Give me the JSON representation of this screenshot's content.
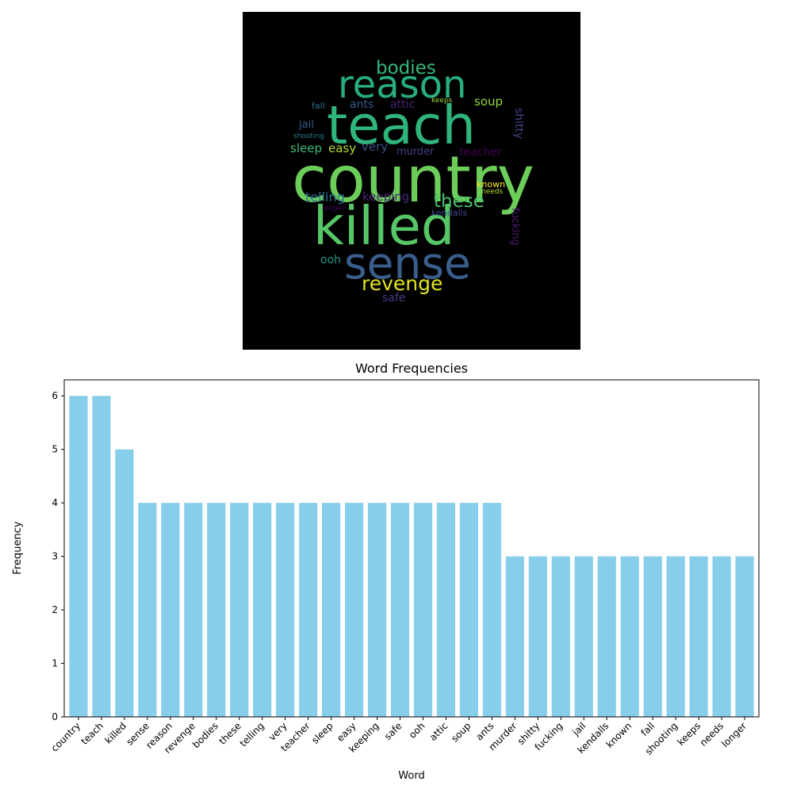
{
  "wordcloud": {
    "words": [
      {
        "text": "country",
        "color": "#6ccd5a"
      },
      {
        "text": "teach",
        "color": "#2fb47c"
      },
      {
        "text": "killed",
        "color": "#56c667"
      },
      {
        "text": "sense",
        "color": "#3a5e8c"
      },
      {
        "text": "reason",
        "color": "#27ad81"
      },
      {
        "text": "revenge",
        "color": "#e2e418"
      },
      {
        "text": "bodies",
        "color": "#35b779"
      },
      {
        "text": "these",
        "color": "#4ac16d"
      },
      {
        "text": "telling",
        "color": "#2c728e"
      },
      {
        "text": "very",
        "color": "#3b528b"
      },
      {
        "text": "teacher",
        "color": "#440154"
      },
      {
        "text": "sleep",
        "color": "#3dbc74"
      },
      {
        "text": "easy",
        "color": "#addc30"
      },
      {
        "text": "keeping",
        "color": "#482878"
      },
      {
        "text": "safe",
        "color": "#433e85"
      },
      {
        "text": "ooh",
        "color": "#1f958b"
      },
      {
        "text": "attic",
        "color": "#482173"
      },
      {
        "text": "soup",
        "color": "#90d743"
      },
      {
        "text": "ants",
        "color": "#38598c"
      },
      {
        "text": "murder",
        "color": "#414487"
      },
      {
        "text": "shitty",
        "color": "#414487"
      },
      {
        "text": "fucking",
        "color": "#481a6c"
      },
      {
        "text": "jail",
        "color": "#355f8d"
      },
      {
        "text": "kendalls",
        "color": "#3e4989"
      },
      {
        "text": "known",
        "color": "#fde725"
      },
      {
        "text": "fall",
        "color": "#2d708e"
      },
      {
        "text": "shooting",
        "color": "#2a788e"
      },
      {
        "text": "keeps",
        "color": "#9bd93c"
      },
      {
        "text": "needs",
        "color": "#b5de2b"
      },
      {
        "text": "longer",
        "color": "#46085c"
      }
    ]
  },
  "chart_data": {
    "type": "bar",
    "title": "Word Frequencies",
    "xlabel": "Word",
    "ylabel": "Frequency",
    "ylim": [
      0,
      6.3
    ],
    "yticks": [
      0,
      1,
      2,
      3,
      4,
      5,
      6
    ],
    "categories": [
      "country",
      "teach",
      "killed",
      "sense",
      "reason",
      "revenge",
      "bodies",
      "these",
      "telling",
      "very",
      "teacher",
      "sleep",
      "easy",
      "keeping",
      "safe",
      "ooh",
      "attic",
      "soup",
      "ants",
      "murder",
      "shitty",
      "fucking",
      "jail",
      "kendalls",
      "known",
      "fall",
      "shooting",
      "keeps",
      "needs",
      "longer"
    ],
    "values": [
      6,
      6,
      5,
      4,
      4,
      4,
      4,
      4,
      4,
      4,
      4,
      4,
      4,
      4,
      4,
      4,
      4,
      4,
      4,
      3,
      3,
      3,
      3,
      3,
      3,
      3,
      3,
      3,
      3,
      3
    ],
    "bar_color": "#87ceeb",
    "grid": false,
    "legend": "none"
  }
}
